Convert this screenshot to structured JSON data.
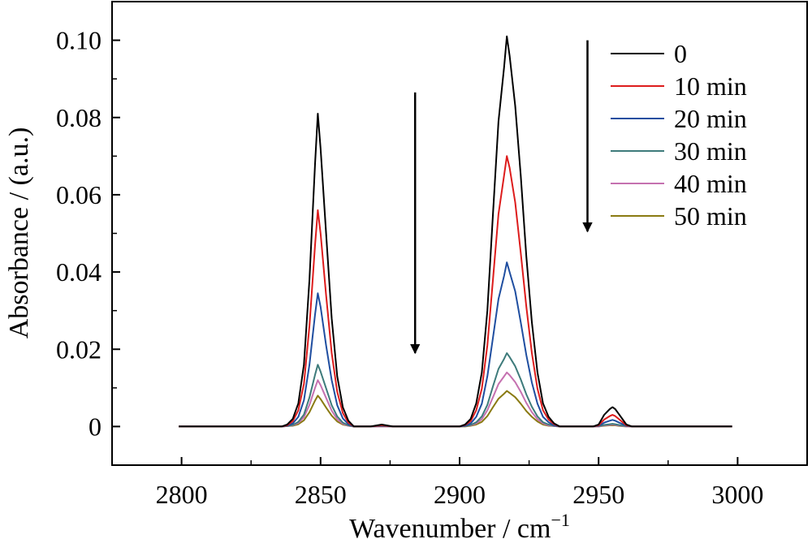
{
  "chart_data": {
    "type": "line",
    "xlabel": "Wavenumber / cm",
    "xlabel_sup": "−1",
    "ylabel": "Absorbance / (a.u.)",
    "xlim": [
      2775,
      3025
    ],
    "ylim": [
      -0.01,
      0.11
    ],
    "xticks": [
      2800,
      2850,
      2900,
      2950,
      3000
    ],
    "xtick_labels": [
      "2800",
      "2850",
      "2900",
      "2950",
      "3000"
    ],
    "yticks": [
      0,
      0.02,
      0.04,
      0.06,
      0.08,
      0.1
    ],
    "ytick_labels": [
      "0",
      "0.02",
      "0.04",
      "0.06",
      "0.08",
      "0.10"
    ],
    "grid": false,
    "legend_position": "top-right",
    "x": [
      2799,
      2836,
      2838,
      2840,
      2842,
      2844,
      2846,
      2848,
      2849,
      2850,
      2852,
      2854,
      2856,
      2858,
      2860,
      2862,
      2868,
      2872,
      2876,
      2900,
      2902,
      2904,
      2906,
      2908,
      2910,
      2912,
      2914,
      2916,
      2917,
      2918,
      2920,
      2922,
      2924,
      2926,
      2928,
      2930,
      2932,
      2934,
      2936,
      2938,
      2948,
      2950,
      2952,
      2954,
      2955,
      2956,
      2958,
      2960,
      2962,
      2998
    ],
    "series": [
      {
        "name": "0",
        "color": "#000000",
        "values": [
          0,
          0,
          0.0005,
          0.002,
          0.006,
          0.016,
          0.038,
          0.068,
          0.081,
          0.072,
          0.05,
          0.028,
          0.013,
          0.005,
          0.0015,
          0,
          0,
          0.0005,
          0,
          0,
          0.0005,
          0.002,
          0.006,
          0.014,
          0.03,
          0.055,
          0.079,
          0.093,
          0.101,
          0.096,
          0.083,
          0.065,
          0.044,
          0.027,
          0.014,
          0.006,
          0.0025,
          0.0008,
          0,
          0,
          0,
          0.0005,
          0.003,
          0.0045,
          0.005,
          0.0045,
          0.0025,
          0.0005,
          0,
          0
        ]
      },
      {
        "name": "10 min",
        "color": "#dd1c1c",
        "values": [
          0,
          0,
          0.0003,
          0.0014,
          0.0042,
          0.011,
          0.026,
          0.047,
          0.056,
          0.05,
          0.034,
          0.019,
          0.009,
          0.0035,
          0.001,
          0,
          0,
          0.0003,
          0,
          0,
          0.0004,
          0.0014,
          0.0042,
          0.0098,
          0.021,
          0.038,
          0.055,
          0.065,
          0.07,
          0.067,
          0.058,
          0.045,
          0.031,
          0.019,
          0.0098,
          0.0042,
          0.0018,
          0.0006,
          0,
          0,
          0,
          0.0003,
          0.0018,
          0.0027,
          0.003,
          0.0027,
          0.0015,
          0.0003,
          0,
          0
        ]
      },
      {
        "name": "20 min",
        "color": "#1f4ea0",
        "values": [
          0,
          0,
          0.0002,
          0.0008,
          0.0025,
          0.0068,
          0.016,
          0.029,
          0.0345,
          0.031,
          0.021,
          0.012,
          0.0055,
          0.0021,
          0.0006,
          0,
          0,
          0.0002,
          0,
          0,
          0.0002,
          0.0008,
          0.0025,
          0.0059,
          0.013,
          0.023,
          0.033,
          0.039,
          0.0425,
          0.04,
          0.035,
          0.027,
          0.0185,
          0.0114,
          0.0059,
          0.0025,
          0.0011,
          0.0003,
          0,
          0,
          0,
          0.0002,
          0.001,
          0.0015,
          0.0017,
          0.0015,
          0.0008,
          0.0002,
          0,
          0
        ]
      },
      {
        "name": "30 min",
        "color": "#3e7b7b",
        "values": [
          0,
          0,
          0.0001,
          0.0004,
          0.0012,
          0.0031,
          0.0075,
          0.0134,
          0.016,
          0.0142,
          0.0099,
          0.0055,
          0.0026,
          0.001,
          0.0003,
          0,
          0,
          0.0001,
          0,
          0,
          0.0001,
          0.0004,
          0.0011,
          0.0026,
          0.0056,
          0.0104,
          0.0149,
          0.0175,
          0.019,
          0.018,
          0.0156,
          0.0122,
          0.0083,
          0.0051,
          0.0026,
          0.0011,
          0.0005,
          0.0002,
          0,
          0,
          0,
          0.0001,
          0.0004,
          0.0006,
          0.0007,
          0.0006,
          0.0003,
          0.0001,
          0,
          0
        ]
      },
      {
        "name": "40 min",
        "color": "#c571b0",
        "values": [
          0,
          0,
          0.0001,
          0.0003,
          0.0009,
          0.0024,
          0.0056,
          0.01,
          0.012,
          0.0107,
          0.0074,
          0.0041,
          0.0019,
          0.0007,
          0.0002,
          0,
          0,
          0,
          0,
          0,
          0.0001,
          0.0003,
          0.0008,
          0.0019,
          0.0042,
          0.0076,
          0.011,
          0.013,
          0.014,
          0.0133,
          0.0115,
          0.009,
          0.0061,
          0.0037,
          0.0019,
          0.0008,
          0.0003,
          0.0001,
          0,
          0,
          0,
          0,
          0.0003,
          0.0004,
          0.0005,
          0.0004,
          0.0002,
          0,
          0,
          0
        ]
      },
      {
        "name": "50 min",
        "color": "#8a7a12",
        "values": [
          0,
          0,
          0.0001,
          0.0002,
          0.0006,
          0.0016,
          0.0037,
          0.0067,
          0.008,
          0.0071,
          0.0049,
          0.0028,
          0.0013,
          0.0005,
          0.0002,
          0,
          0,
          0,
          0,
          0,
          0,
          0.0002,
          0.0005,
          0.0012,
          0.0027,
          0.005,
          0.0072,
          0.0085,
          0.0092,
          0.0087,
          0.0076,
          0.0059,
          0.004,
          0.0025,
          0.0013,
          0.0005,
          0.0002,
          0.0001,
          0,
          0,
          0,
          0,
          0.0002,
          0.0003,
          0.0003,
          0.0003,
          0.0001,
          0,
          0,
          0
        ]
      }
    ],
    "annotations": [
      {
        "type": "arrow",
        "direction": "down",
        "x": 2884,
        "y_start": 0.0865,
        "y_end": 0.019
      },
      {
        "type": "arrow",
        "direction": "down",
        "x": 2946,
        "y_start": 0.1,
        "y_end": 0.0505
      }
    ]
  }
}
